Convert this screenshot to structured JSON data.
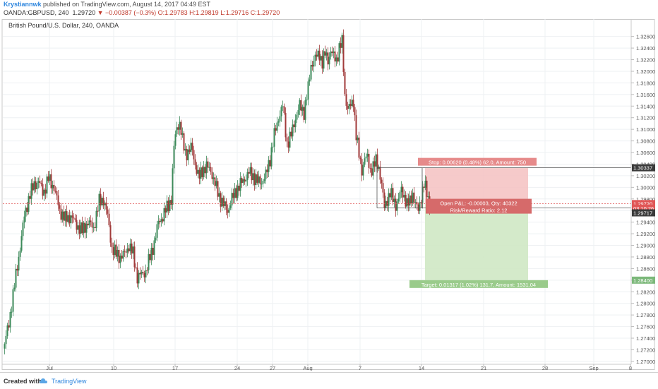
{
  "header": {
    "author": "Krystiannwk",
    "published": "published on TradingView.com, August 14, 2017 04:49 EST",
    "symbol": "OANDA:GBPUSD, 240",
    "last": "1.29720",
    "change": "−0.00387 (−0.3%)",
    "ohlc": "O:1.29783 H:1.29819 L:1.29716 C:1.29720"
  },
  "chart_title": "British Pound/U.S. Dollar, 240, OANDA",
  "footer": {
    "created": "Created with",
    "brand": "TradingView"
  },
  "colors": {
    "up": "#3c8a5a",
    "down": "#a13a3a",
    "stop_zone": "#f4c1c1",
    "target_zone": "#cfe8c4",
    "price_line": "#e05656"
  },
  "chart_data": {
    "type": "candlestick",
    "instrument": "GBP/USD",
    "timeframe": "240",
    "ylim": [
      1.2695,
      1.329
    ],
    "y_ticks": [
      "1.32600",
      "1.32400",
      "1.32200",
      "1.32000",
      "1.31800",
      "1.31600",
      "1.31400",
      "1.31200",
      "1.31000",
      "1.30800",
      "1.30600",
      "1.30400",
      "1.30200",
      "1.30000",
      "1.29800",
      "1.29600",
      "1.29400",
      "1.29200",
      "1.29000",
      "1.28800",
      "1.28600",
      "1.28400",
      "1.28200",
      "1.28000",
      "1.27800",
      "1.27600",
      "1.27400",
      "1.27200",
      "1.27000"
    ],
    "x_ticks": [
      "Jul",
      "10",
      "17",
      "24",
      "27",
      "Aug",
      "7",
      "14",
      "21",
      "28",
      "Sep",
      "8"
    ],
    "price_markers": [
      {
        "label": "1.30337",
        "value": 1.30337
      },
      {
        "label": "1.29720",
        "value": 1.2972
      },
      {
        "label": "03:10:26",
        "value": 1.2964
      },
      {
        "label": "1.29717",
        "value": 1.2956
      },
      {
        "label": "1.28400",
        "value": 1.284
      }
    ],
    "position": {
      "entry": 1.29717,
      "stop": 1.30337,
      "target": 1.284,
      "stop_label": "Stop: 0.00620 (0.48%) 62.0, Amount: 750",
      "pnl_label": "Open P&L: -0.00003, Qty: 40322",
      "rr_label": "Risk/Reward Ratio: 2.12",
      "target_label": "Target: 0.01317 (1.02%) 131.7, Amount: 1531.04"
    },
    "anchors": [
      [
        0,
        1.273
      ],
      [
        6,
        1.2765
      ],
      [
        12,
        1.2815
      ],
      [
        20,
        1.288
      ],
      [
        28,
        1.295
      ],
      [
        35,
        1.2985
      ],
      [
        42,
        1.3005
      ],
      [
        48,
        1.301
      ],
      [
        55,
        1.299
      ],
      [
        62,
        1.3015
      ],
      [
        70,
        1.3
      ],
      [
        78,
        1.296
      ],
      [
        86,
        1.2945
      ],
      [
        94,
        1.295
      ],
      [
        102,
        1.2935
      ],
      [
        110,
        1.2925
      ],
      [
        118,
        1.294
      ],
      [
        126,
        1.293
      ],
      [
        134,
        1.2975
      ],
      [
        140,
        1.298
      ],
      [
        146,
        1.295
      ],
      [
        152,
        1.2895
      ],
      [
        158,
        1.2885
      ],
      [
        164,
        1.288
      ],
      [
        170,
        1.2885
      ],
      [
        176,
        1.29
      ],
      [
        182,
        1.2885
      ],
      [
        188,
        1.2845
      ],
      [
        194,
        1.285
      ],
      [
        200,
        1.2855
      ],
      [
        206,
        1.288
      ],
      [
        212,
        1.2905
      ],
      [
        218,
        1.294
      ],
      [
        224,
        1.295
      ],
      [
        230,
        1.2965
      ],
      [
        236,
        1.298
      ],
      [
        240,
        1.307
      ],
      [
        244,
        1.3105
      ],
      [
        248,
        1.311
      ],
      [
        252,
        1.308
      ],
      [
        256,
        1.306
      ],
      [
        260,
        1.306
      ],
      [
        265,
        1.307
      ],
      [
        270,
        1.304
      ],
      [
        275,
        1.3015
      ],
      [
        280,
        1.303
      ],
      [
        286,
        1.3035
      ],
      [
        292,
        1.303
      ],
      [
        298,
        1.3005
      ],
      [
        304,
        1.2985
      ],
      [
        310,
        1.297
      ],
      [
        316,
        1.296
      ],
      [
        322,
        1.298
      ],
      [
        328,
        1.2995
      ],
      [
        334,
        1.3005
      ],
      [
        340,
        1.3015
      ],
      [
        346,
        1.3025
      ],
      [
        352,
        1.302
      ],
      [
        358,
        1.301
      ],
      [
        364,
        1.301
      ],
      [
        370,
        1.302
      ],
      [
        376,
        1.305
      ],
      [
        382,
        1.309
      ],
      [
        388,
        1.312
      ],
      [
        394,
        1.314
      ],
      [
        400,
        1.3075
      ],
      [
        406,
        1.309
      ],
      [
        412,
        1.312
      ],
      [
        418,
        1.314
      ],
      [
        424,
        1.313
      ],
      [
        430,
        1.317
      ],
      [
        434,
        1.321
      ],
      [
        438,
        1.322
      ],
      [
        442,
        1.3225
      ],
      [
        446,
        1.323
      ],
      [
        450,
        1.3215
      ],
      [
        454,
        1.323
      ],
      [
        458,
        1.322
      ],
      [
        462,
        1.3235
      ],
      [
        466,
        1.3225
      ],
      [
        470,
        1.322
      ],
      [
        474,
        1.324
      ],
      [
        478,
        1.325
      ],
      [
        482,
        1.316
      ],
      [
        486,
        1.3135
      ],
      [
        490,
        1.314
      ],
      [
        494,
        1.315
      ],
      [
        498,
        1.309
      ],
      [
        502,
        1.3055
      ],
      [
        506,
        1.303
      ],
      [
        510,
        1.305
      ],
      [
        514,
        1.305
      ],
      [
        518,
        1.303
      ],
      [
        522,
        1.3035
      ],
      [
        526,
        1.3045
      ],
      [
        530,
        1.3035
      ],
      [
        534,
        1.3005
      ],
      [
        538,
        1.2965
      ],
      [
        542,
        1.298
      ],
      [
        546,
        1.299
      ],
      [
        550,
        1.298
      ],
      [
        554,
        1.297
      ],
      [
        558,
        1.298
      ],
      [
        562,
        1.2995
      ],
      [
        566,
        1.2985
      ],
      [
        570,
        1.297
      ],
      [
        574,
        1.2975
      ],
      [
        578,
        1.299
      ],
      [
        582,
        1.297
      ],
      [
        586,
        1.296
      ],
      [
        590,
        1.2985
      ],
      [
        594,
        1.3005
      ],
      [
        598,
        1.299
      ],
      [
        601,
        1.2975
      ],
      [
        603,
        1.2972
      ]
    ]
  }
}
